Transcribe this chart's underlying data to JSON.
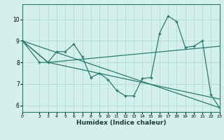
{
  "xlabel": "Humidex (Indice chaleur)",
  "bg_color": "#d4f0ec",
  "line_color": "#2a7a6e",
  "grid_color": "#b8ddd8",
  "xlim": [
    0,
    23
  ],
  "ylim": [
    5.7,
    10.7
  ],
  "yticks": [
    6,
    7,
    8,
    9,
    10
  ],
  "xticks": [
    0,
    2,
    3,
    4,
    5,
    6,
    7,
    8,
    9,
    10,
    11,
    12,
    13,
    14,
    15,
    16,
    17,
    18,
    19,
    20,
    21,
    22,
    23
  ],
  "series1_x": [
    0,
    2,
    3,
    4,
    5,
    6,
    7,
    8,
    9,
    10,
    11,
    12,
    13,
    14,
    15,
    16,
    17,
    18,
    19,
    20,
    21,
    22,
    23
  ],
  "series1_y": [
    9.0,
    8.0,
    8.0,
    8.5,
    8.5,
    8.85,
    8.25,
    7.3,
    7.5,
    7.2,
    6.7,
    6.45,
    6.45,
    7.25,
    7.3,
    9.35,
    10.15,
    9.9,
    8.7,
    8.75,
    9.0,
    6.5,
    5.9
  ],
  "line2_x": [
    0,
    23
  ],
  "line2_y": [
    9.0,
    5.9
  ],
  "line3_x": [
    0,
    3,
    23
  ],
  "line3_y": [
    9.0,
    8.0,
    6.3
  ],
  "line4_x": [
    0,
    3,
    23
  ],
  "line4_y": [
    9.0,
    8.0,
    8.75
  ]
}
